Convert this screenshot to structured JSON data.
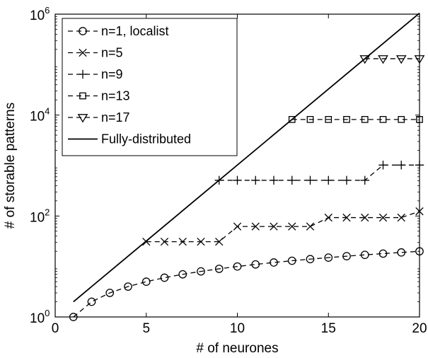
{
  "chart_data": {
    "type": "line",
    "xlabel": "# of neurones",
    "ylabel": "# of storable patterns",
    "xlim": [
      0,
      20
    ],
    "ylim": [
      1,
      1000000
    ],
    "yscale": "log",
    "x_ticks": [
      0,
      5,
      10,
      15,
      20
    ],
    "y_ticks": [
      {
        "value": 1,
        "base": "10",
        "exp": "0"
      },
      {
        "value": 100,
        "base": "10",
        "exp": "2"
      },
      {
        "value": 10000,
        "base": "10",
        "exp": "4"
      },
      {
        "value": 1000000,
        "base": "10",
        "exp": "6"
      }
    ],
    "grid": false,
    "legend_position": "top-left",
    "series": [
      {
        "name": "n=1, localist",
        "marker": "circle",
        "linestyle": "dashed",
        "x": [
          1,
          2,
          3,
          4,
          5,
          6,
          7,
          8,
          9,
          10,
          11,
          12,
          13,
          14,
          15,
          16,
          17,
          18,
          19,
          20
        ],
        "y": [
          1,
          2,
          3,
          4,
          5,
          6,
          7,
          8,
          9,
          10,
          11,
          12,
          13,
          14,
          15,
          16,
          17,
          18,
          19,
          20
        ]
      },
      {
        "name": "n=5",
        "marker": "x",
        "linestyle": "dashed",
        "x": [
          5,
          6,
          7,
          8,
          9,
          10,
          11,
          12,
          13,
          14,
          15,
          16,
          17,
          18,
          19,
          20
        ],
        "y": [
          31,
          31,
          31,
          31,
          31,
          62,
          62,
          62,
          62,
          62,
          93,
          93,
          93,
          93,
          93,
          124
        ]
      },
      {
        "name": "n=9",
        "marker": "plus",
        "linestyle": "dashed",
        "x": [
          9,
          10,
          11,
          12,
          13,
          14,
          15,
          16,
          17,
          18,
          19,
          20
        ],
        "y": [
          511,
          511,
          511,
          511,
          511,
          511,
          511,
          511,
          511,
          1022,
          1022,
          1022
        ]
      },
      {
        "name": "n=13",
        "marker": "square",
        "linestyle": "dashed",
        "x": [
          13,
          14,
          15,
          16,
          17,
          18,
          19,
          20
        ],
        "y": [
          8191,
          8191,
          8191,
          8191,
          8191,
          8191,
          8191,
          8191
        ]
      },
      {
        "name": "n=17",
        "marker": "triangle-down",
        "linestyle": "dashed",
        "x": [
          17,
          18,
          19,
          20
        ],
        "y": [
          131071,
          131071,
          131071,
          131071
        ]
      },
      {
        "name": "Fully-distributed",
        "marker": "none",
        "linestyle": "solid",
        "x": [
          1,
          20
        ],
        "y": [
          2,
          1048576
        ]
      }
    ]
  }
}
